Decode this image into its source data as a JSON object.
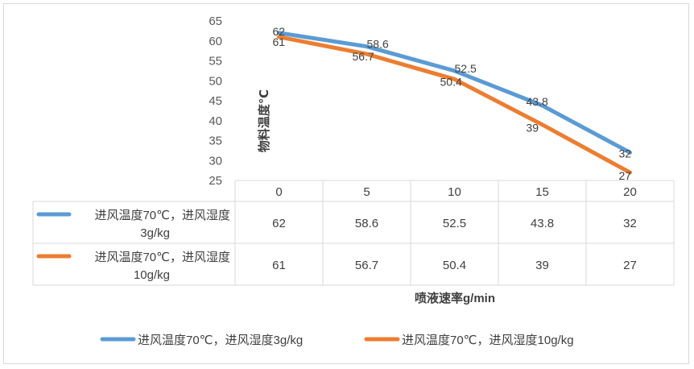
{
  "chart_data": {
    "type": "line",
    "ylabel": "物料温度℃",
    "xlabel": "喷液速率g/min",
    "x": [
      "0",
      "5",
      "10",
      "15",
      "20"
    ],
    "yticks": [
      "65",
      "60",
      "55",
      "50",
      "45",
      "40",
      "35",
      "30",
      "25"
    ],
    "ylim": [
      25,
      65
    ],
    "grid": false,
    "legend_position": "bottom",
    "series": [
      {
        "name": "进风温度70℃，进风湿度3g/kg",
        "table_label_line1": "进风温度70℃，进风湿度",
        "table_label_line2": "3g/kg",
        "values": [
          62,
          58.6,
          52.5,
          43.8,
          32
        ],
        "value_labels": [
          "62",
          "58.6",
          "52.5",
          "43.8",
          "32"
        ],
        "color": "#5b9bd5"
      },
      {
        "name": "进风温度70℃，进风湿度10g/kg",
        "table_label_line1": "进风温度70℃，进风湿度",
        "table_label_line2": "10g/kg",
        "values": [
          61,
          56.7,
          50.4,
          39,
          27
        ],
        "value_labels": [
          "61",
          "56.7",
          "50.4",
          "39",
          "27"
        ],
        "color": "#ed7d31"
      }
    ]
  }
}
